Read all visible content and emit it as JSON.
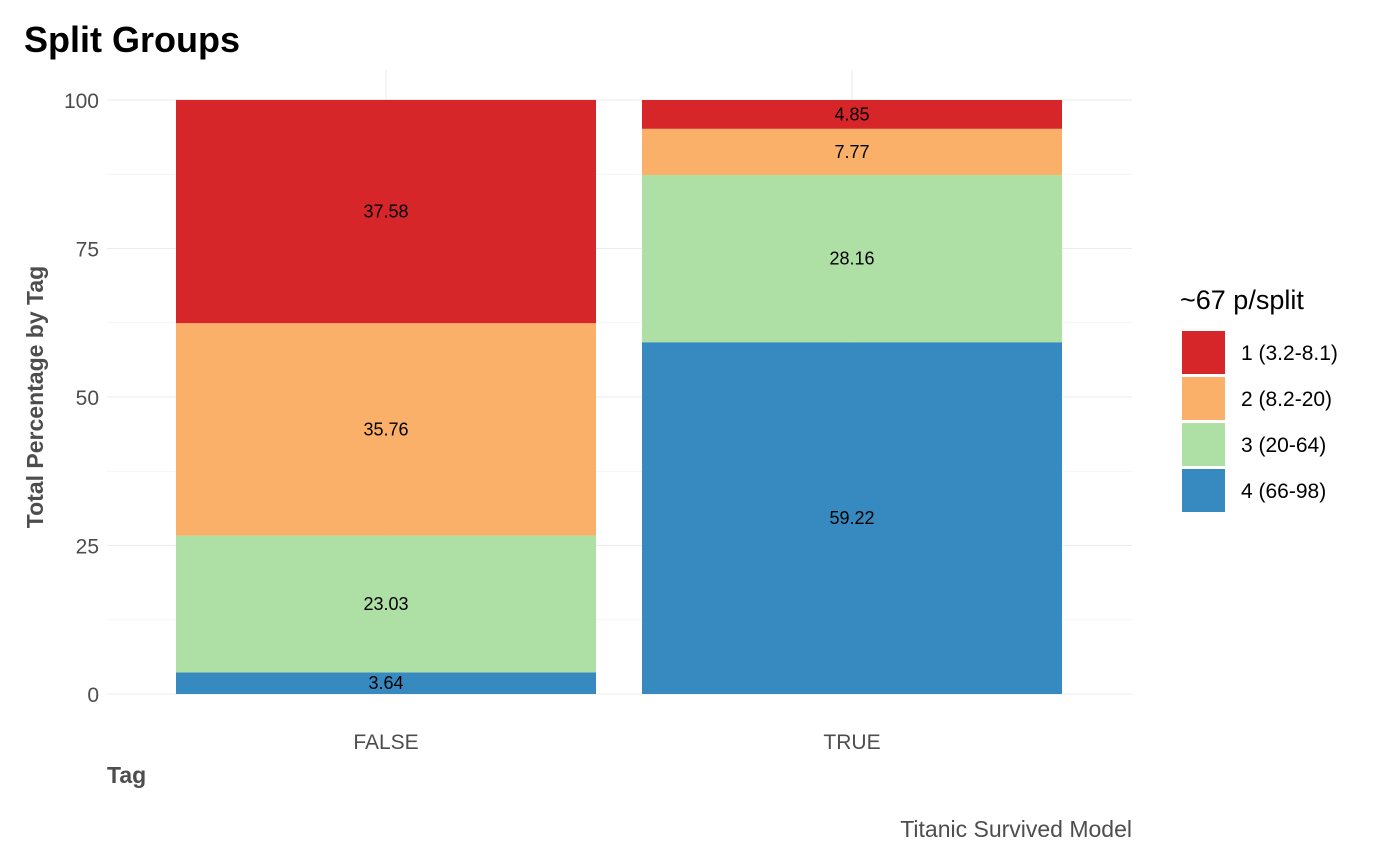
{
  "chart_data": {
    "type": "bar",
    "stacked": true,
    "title": "Split Groups",
    "xlabel": "Tag",
    "ylabel": "Total Percentage by Tag",
    "caption": "Titanic Survived Model",
    "categories": [
      "FALSE",
      "TRUE"
    ],
    "ylim": [
      0,
      100
    ],
    "yticks": [
      "0",
      "25",
      "50",
      "75",
      "100"
    ],
    "grid": true,
    "legend": {
      "title": "~67 p/split",
      "position": "right"
    },
    "series": [
      {
        "name": "1 (3.2-8.1)",
        "color": "#d7262a",
        "values": [
          37.58,
          4.85
        ],
        "labels": [
          "37.58",
          "4.85"
        ]
      },
      {
        "name": "2 (8.2-20)",
        "color": "#fbb06a",
        "values": [
          35.76,
          7.77
        ],
        "labels": [
          "35.76",
          "7.77"
        ]
      },
      {
        "name": "3 (20-64)",
        "color": "#aedfa5",
        "values": [
          23.03,
          28.16
        ],
        "labels": [
          "23.03",
          "28.16"
        ]
      },
      {
        "name": "4 (66-98)",
        "color": "#378ac0",
        "values": [
          3.64,
          59.22
        ],
        "labels": [
          "3.64",
          "59.22"
        ]
      }
    ]
  }
}
